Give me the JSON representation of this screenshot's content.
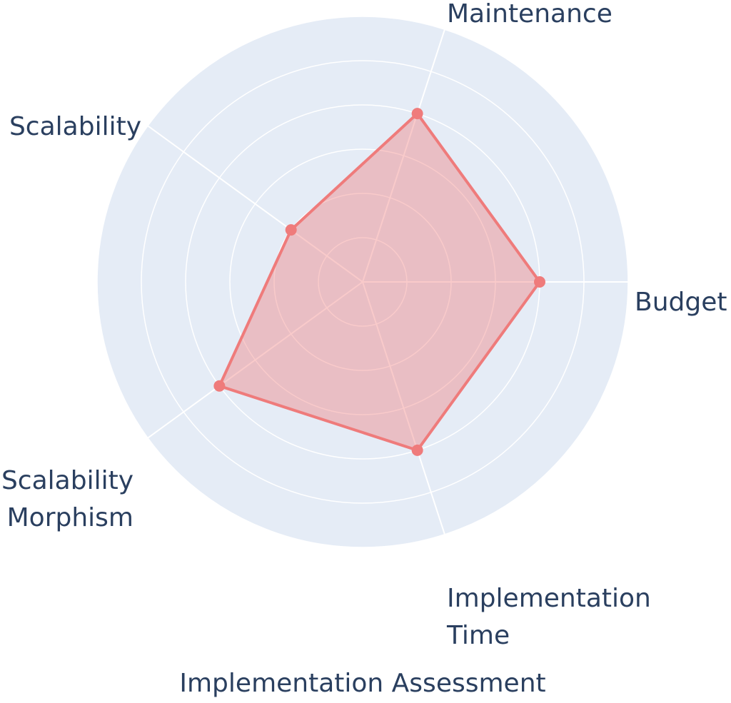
{
  "chart_data": {
    "type": "radar",
    "title": "Implementation Assessment",
    "axes": [
      "Budget",
      "Maintenance",
      "Scalability",
      "Scalability Morphism",
      "Implementation Time"
    ],
    "axis_label_lines": [
      [
        "Budget"
      ],
      [
        "Maintenance"
      ],
      [
        "Scalability"
      ],
      [
        "Scalability",
        "Morphism"
      ],
      [
        "Implementation",
        "Time"
      ]
    ],
    "series": [
      {
        "values": [
          4,
          4,
          2,
          4,
          4
        ]
      }
    ],
    "radial_range": [
      0,
      6
    ],
    "radial_gridlines": [
      1,
      2,
      3,
      4,
      5,
      6
    ],
    "colors": {
      "polar_background": "#e5ecf6",
      "grid": "#ffffff",
      "series_line": "#ef7b7b",
      "series_fill": "rgba(239,123,123,0.4)",
      "text": "#2a3f5f"
    }
  }
}
